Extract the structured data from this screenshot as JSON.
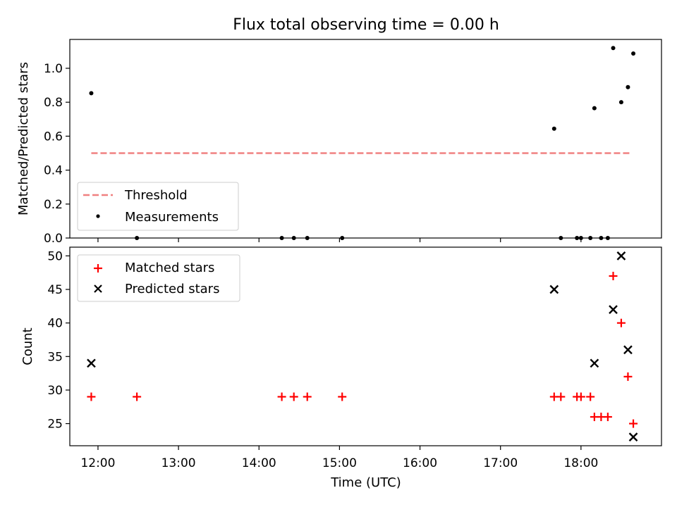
{
  "title": "Flux total observing time = 0.00 h",
  "x_axis": {
    "label": "Time (UTC)",
    "ticks": [
      "12:00",
      "13:00",
      "14:00",
      "15:00",
      "16:00",
      "17:00",
      "18:00"
    ]
  },
  "colors": {
    "threshold": "#f08080",
    "measurements": "#000000",
    "matched": "#ff0000",
    "predicted": "#000000"
  },
  "chart_data": [
    {
      "type": "scatter",
      "ylabel": "Matched/Predicted stars",
      "xlim": [
        "11:39",
        "19:00"
      ],
      "ylim": [
        0,
        1.17
      ],
      "yticks": [
        "0.0",
        "0.2",
        "0.4",
        "0.6",
        "0.8",
        "1.0"
      ],
      "legend_position": "lower-left",
      "series": [
        {
          "name": "Threshold",
          "style": "dashed-line",
          "points": [
            [
              "11:55",
              0.5
            ],
            [
              "18:37",
              0.5
            ]
          ]
        },
        {
          "name": "Measurements",
          "style": "dot",
          "points": [
            [
              "11:55",
              0.853
            ],
            [
              "12:29",
              0.0
            ],
            [
              "14:17",
              0.0
            ],
            [
              "14:26",
              0.0
            ],
            [
              "14:36",
              0.0
            ],
            [
              "15:02",
              0.0
            ],
            [
              "17:40",
              0.644
            ],
            [
              "17:45",
              0.0
            ],
            [
              "17:57",
              0.0
            ],
            [
              "18:00",
              0.0
            ],
            [
              "18:07",
              0.0
            ],
            [
              "18:10",
              0.765
            ],
            [
              "18:15",
              0.0
            ],
            [
              "18:20",
              0.0
            ],
            [
              "18:24",
              1.119
            ],
            [
              "18:30",
              0.8
            ],
            [
              "18:35",
              0.889
            ],
            [
              "18:39",
              1.087
            ]
          ]
        }
      ]
    },
    {
      "type": "scatter",
      "ylabel": "Count",
      "xlim": [
        "11:39",
        "19:00"
      ],
      "ylim": [
        21.7,
        51.3
      ],
      "yticks": [
        "25",
        "30",
        "35",
        "40",
        "45",
        "50"
      ],
      "legend_position": "upper-left",
      "series": [
        {
          "name": "Matched stars",
          "style": "plus",
          "points": [
            [
              "11:55",
              29
            ],
            [
              "12:29",
              29
            ],
            [
              "14:17",
              29
            ],
            [
              "14:26",
              29
            ],
            [
              "14:36",
              29
            ],
            [
              "15:02",
              29
            ],
            [
              "17:40",
              29
            ],
            [
              "17:45",
              29
            ],
            [
              "17:57",
              29
            ],
            [
              "18:00",
              29
            ],
            [
              "18:07",
              29
            ],
            [
              "18:10",
              26
            ],
            [
              "18:15",
              26
            ],
            [
              "18:20",
              26
            ],
            [
              "18:24",
              47
            ],
            [
              "18:30",
              40
            ],
            [
              "18:35",
              32
            ],
            [
              "18:39",
              25
            ]
          ]
        },
        {
          "name": "Predicted stars",
          "style": "x",
          "points": [
            [
              "11:55",
              34
            ],
            [
              "17:40",
              45
            ],
            [
              "18:10",
              34
            ],
            [
              "18:24",
              42
            ],
            [
              "18:30",
              50
            ],
            [
              "18:35",
              36
            ],
            [
              "18:39",
              23
            ]
          ]
        }
      ]
    }
  ]
}
